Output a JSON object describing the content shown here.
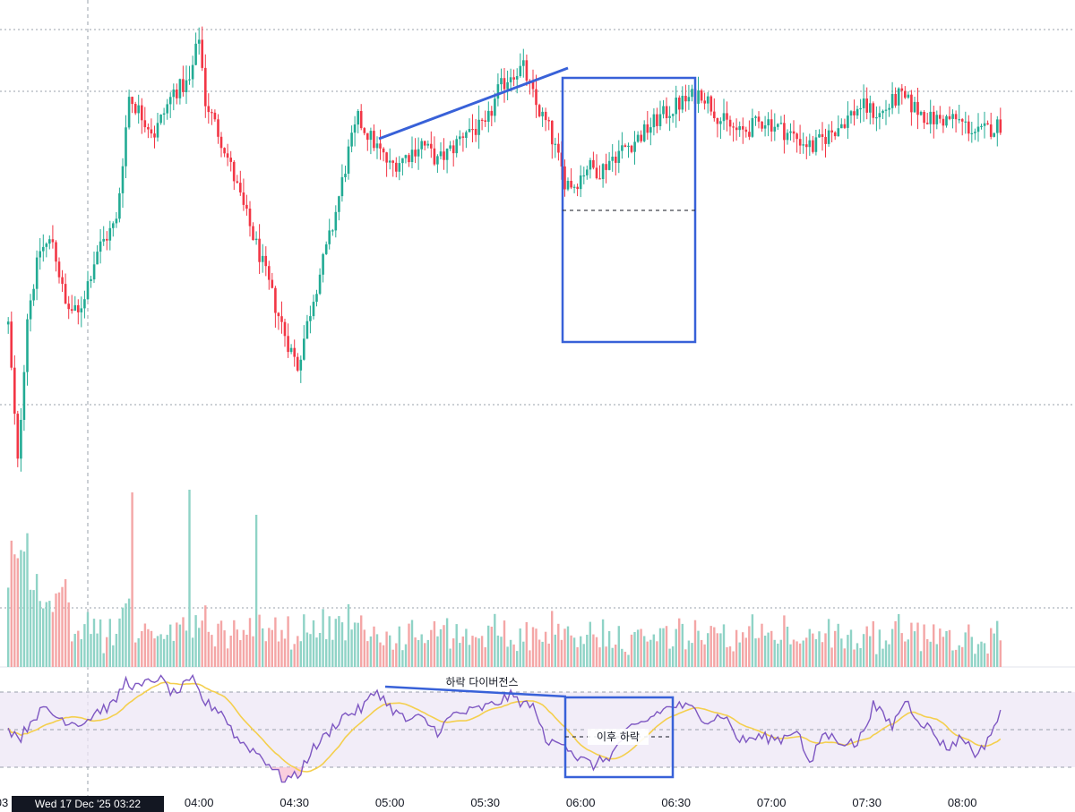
{
  "colors": {
    "up": "#22ab94",
    "down": "#f23645",
    "volume_up": "#8fd3c6",
    "volume_down": "#f4a6a6",
    "rsi_line": "#7e57c2",
    "rsi_ma": "#f4cf4e",
    "rsi_band": "#ede7f6",
    "annotation": "#3861d8",
    "grid": "#f0f3fa",
    "text": "#131722"
  },
  "crosshair": {
    "time_label": "Wed 17 Dec '25   03:22"
  },
  "time_axis": {
    "partial_left_label": "03",
    "ticks": [
      "04:00",
      "04:30",
      "05:00",
      "05:30",
      "06:00",
      "06:30",
      "07:00",
      "07:30",
      "08:00"
    ]
  },
  "annotations": {
    "divergence_label": "하락 다이버전스",
    "after_drop_label": "이후 하락"
  },
  "chart_data": [
    {
      "type": "candlestick",
      "panel": "price",
      "interval": "1 minute (approx.)",
      "x_range": [
        "03:00",
        "08:12"
      ],
      "y_range_normalized": [
        0,
        100
      ],
      "y_axis_labels_visible": false,
      "price_path_anchors": [
        [
          "03:00",
          38
        ],
        [
          "03:03",
          8
        ],
        [
          "03:06",
          40
        ],
        [
          "03:10",
          54
        ],
        [
          "03:14",
          56
        ],
        [
          "03:18",
          42
        ],
        [
          "03:22",
          40
        ],
        [
          "03:28",
          54
        ],
        [
          "03:34",
          60
        ],
        [
          "03:38",
          87
        ],
        [
          "03:46",
          79
        ],
        [
          "03:52",
          88
        ],
        [
          "03:57",
          90
        ],
        [
          "04:00",
          100
        ],
        [
          "04:02",
          86
        ],
        [
          "04:08",
          76
        ],
        [
          "04:14",
          63
        ],
        [
          "04:19",
          53
        ],
        [
          "04:24",
          42
        ],
        [
          "04:28",
          34
        ],
        [
          "04:31",
          29
        ],
        [
          "04:36",
          44
        ],
        [
          "04:42",
          59
        ],
        [
          "04:47",
          75
        ],
        [
          "04:50",
          82
        ],
        [
          "04:55",
          77
        ],
        [
          "05:00",
          72
        ],
        [
          "05:05",
          74
        ],
        [
          "05:10",
          77
        ],
        [
          "05:15",
          73
        ],
        [
          "05:20",
          76
        ],
        [
          "05:24",
          80
        ],
        [
          "05:30",
          80
        ],
        [
          "05:34",
          88
        ],
        [
          "05:38",
          92
        ],
        [
          "05:42",
          93
        ],
        [
          "05:46",
          85
        ],
        [
          "05:50",
          80
        ],
        [
          "05:55",
          69
        ],
        [
          "05:58",
          68
        ],
        [
          "06:02",
          72
        ],
        [
          "06:06",
          71
        ],
        [
          "06:10",
          74
        ],
        [
          "06:18",
          78
        ],
        [
          "06:24",
          82
        ],
        [
          "06:30",
          85
        ],
        [
          "06:38",
          88
        ],
        [
          "06:44",
          82
        ],
        [
          "06:50",
          79
        ],
        [
          "06:58",
          82
        ],
        [
          "07:08",
          78
        ],
        [
          "07:13",
          76
        ],
        [
          "07:20",
          80
        ],
        [
          "07:28",
          85
        ],
        [
          "07:34",
          83
        ],
        [
          "07:40",
          87
        ],
        [
          "07:44",
          85
        ],
        [
          "07:50",
          82
        ],
        [
          "07:58",
          82
        ],
        [
          "08:05",
          79
        ],
        [
          "08:12",
          81
        ]
      ]
    },
    {
      "type": "bar",
      "panel": "volume",
      "note": "volume colored by candle direction; spikes near 03:39, 03:57 and 04:18",
      "y_range_normalized": [
        0,
        100
      ]
    },
    {
      "type": "line",
      "panel": "rsi",
      "band_levels": [
        70,
        50,
        30
      ],
      "y_range": [
        20,
        80
      ],
      "y_axis_labels_visible": false,
      "rsi_path_anchors": [
        [
          "03:00",
          50
        ],
        [
          "03:04",
          46
        ],
        [
          "03:08",
          57
        ],
        [
          "03:12",
          61
        ],
        [
          "03:15",
          57
        ],
        [
          "03:20",
          54
        ],
        [
          "03:24",
          54
        ],
        [
          "03:28",
          60
        ],
        [
          "03:33",
          63
        ],
        [
          "03:37",
          76
        ],
        [
          "03:41",
          72
        ],
        [
          "03:47",
          78
        ],
        [
          "03:52",
          69
        ],
        [
          "03:58",
          76
        ],
        [
          "04:02",
          64
        ],
        [
          "04:07",
          60
        ],
        [
          "04:12",
          45
        ],
        [
          "04:18",
          38
        ],
        [
          "04:22",
          32
        ],
        [
          "04:26",
          24
        ],
        [
          "04:31",
          25
        ],
        [
          "04:35",
          38
        ],
        [
          "04:40",
          47
        ],
        [
          "04:45",
          57
        ],
        [
          "04:51",
          61
        ],
        [
          "04:56",
          71
        ],
        [
          "05:00",
          62
        ],
        [
          "05:05",
          55
        ],
        [
          "05:10",
          56
        ],
        [
          "05:15",
          49
        ],
        [
          "05:20",
          58
        ],
        [
          "05:26",
          60
        ],
        [
          "05:32",
          63
        ],
        [
          "05:38",
          68
        ],
        [
          "05:42",
          64
        ],
        [
          "05:46",
          61
        ],
        [
          "05:49",
          42
        ],
        [
          "05:54",
          45
        ],
        [
          "05:59",
          35
        ],
        [
          "06:04",
          31
        ],
        [
          "06:10",
          37
        ],
        [
          "06:14",
          48
        ],
        [
          "06:20",
          54
        ],
        [
          "06:25",
          60
        ],
        [
          "06:30",
          63
        ],
        [
          "06:35",
          61
        ],
        [
          "06:40",
          55
        ],
        [
          "06:45",
          58
        ],
        [
          "06:50",
          44
        ],
        [
          "06:56",
          46
        ],
        [
          "07:03",
          45
        ],
        [
          "07:08",
          51
        ],
        [
          "07:12",
          30
        ],
        [
          "07:16",
          48
        ],
        [
          "07:22",
          44
        ],
        [
          "07:27",
          42
        ],
        [
          "07:32",
          63
        ],
        [
          "07:38",
          52
        ],
        [
          "07:42",
          66
        ],
        [
          "07:46",
          56
        ],
        [
          "07:50",
          50
        ],
        [
          "07:55",
          40
        ],
        [
          "08:00",
          46
        ],
        [
          "08:05",
          36
        ],
        [
          "08:12",
          58
        ]
      ]
    }
  ]
}
